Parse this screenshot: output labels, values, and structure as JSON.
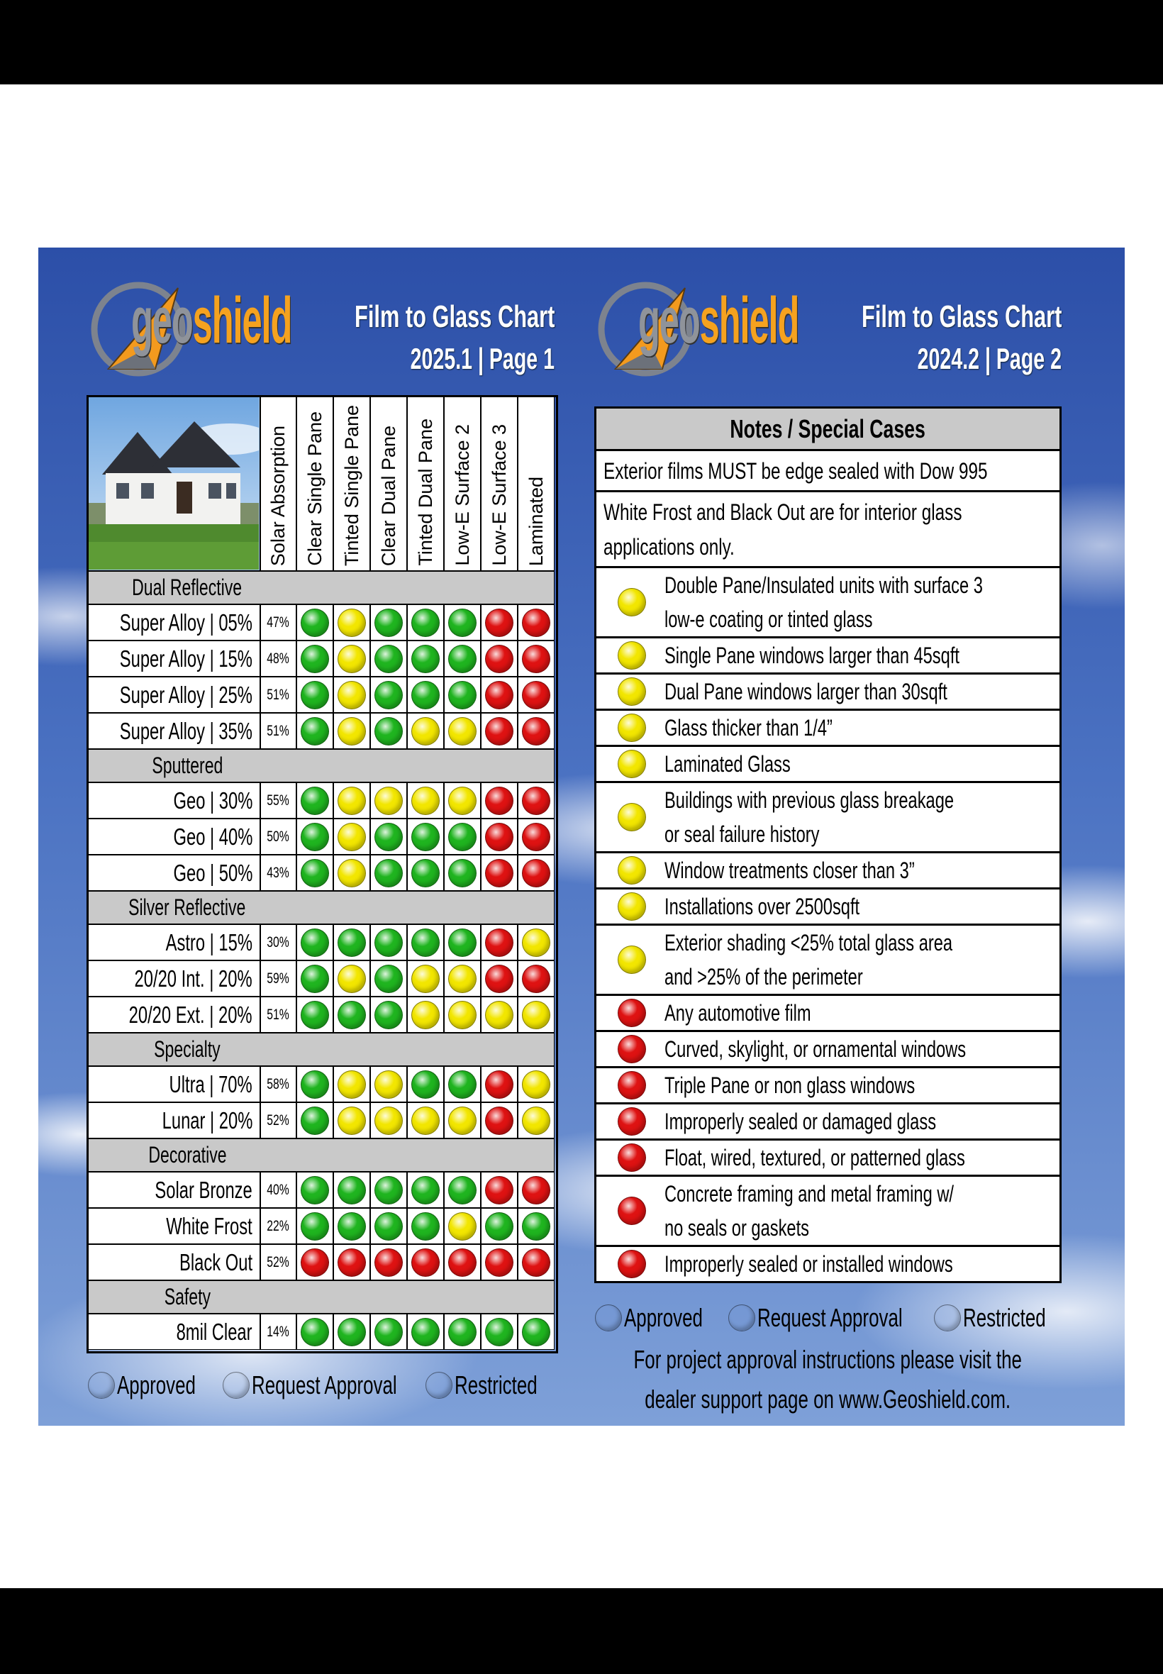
{
  "legend": [
    {
      "label": "Approved",
      "color": "#1fb41f"
    },
    {
      "label": "Request Approval",
      "color": "#f2e600"
    },
    {
      "label": "Restricted",
      "color": "#de1212"
    }
  ],
  "page1": {
    "logo": [
      "geo",
      "shield"
    ],
    "title": "Film to Glass Chart",
    "subtitle": "2025.1 | Page 1",
    "columns": [
      "Solar Absorption",
      "Clear Single Pane",
      "Tinted Single Pane",
      "Clear Dual Pane",
      "Tinted Dual Pane",
      "Low-E Surface 2",
      "Low-E Surface 3",
      "Laminated"
    ],
    "groups": [
      {
        "name": "Dual Reflective",
        "rows": [
          {
            "film": "Super Alloy | 05%",
            "solar": "47%",
            "status": [
              0,
              1,
              0,
              0,
              0,
              2,
              2
            ]
          },
          {
            "film": "Super Alloy |  15%",
            "solar": "48%",
            "status": [
              0,
              1,
              0,
              0,
              0,
              2,
              2
            ]
          },
          {
            "film": "Super Alloy | 25%",
            "solar": "51%",
            "status": [
              0,
              1,
              0,
              0,
              0,
              2,
              2
            ]
          },
          {
            "film": "Super Alloy | 35%",
            "solar": "51%",
            "status": [
              0,
              1,
              0,
              1,
              1,
              2,
              2
            ]
          }
        ]
      },
      {
        "name": "Sputtered",
        "rows": [
          {
            "film": "Geo | 30%",
            "solar": "55%",
            "status": [
              0,
              1,
              1,
              1,
              1,
              2,
              2
            ]
          },
          {
            "film": "Geo | 40%",
            "solar": "50%",
            "status": [
              0,
              1,
              0,
              0,
              0,
              2,
              2
            ]
          },
          {
            "film": "Geo | 50%",
            "solar": "43%",
            "status": [
              0,
              1,
              0,
              0,
              0,
              2,
              2
            ]
          }
        ]
      },
      {
        "name": "Silver Reflective",
        "rows": [
          {
            "film": "Astro | 15%",
            "solar": "30%",
            "status": [
              0,
              0,
              0,
              0,
              0,
              2,
              1
            ]
          },
          {
            "film": "20/20 Int. | 20%",
            "solar": "59%",
            "status": [
              0,
              1,
              0,
              1,
              1,
              2,
              2
            ]
          },
          {
            "film": "20/20 Ext. | 20%",
            "solar": "51%",
            "status": [
              0,
              0,
              0,
              1,
              1,
              1,
              1
            ]
          }
        ]
      },
      {
        "name": "Specialty",
        "rows": [
          {
            "film": "Ultra | 70%",
            "solar": "58%",
            "status": [
              0,
              1,
              1,
              0,
              0,
              2,
              1
            ]
          },
          {
            "film": "Lunar | 20%",
            "solar": "52%",
            "status": [
              0,
              1,
              1,
              1,
              1,
              2,
              1
            ]
          }
        ]
      },
      {
        "name": "Decorative",
        "rows": [
          {
            "film": "Solar Bronze",
            "solar": "40%",
            "status": [
              0,
              0,
              0,
              0,
              0,
              2,
              2
            ]
          },
          {
            "film": "White Frost",
            "solar": "22%",
            "status": [
              0,
              0,
              0,
              0,
              1,
              0,
              0
            ]
          },
          {
            "film": "Black Out",
            "solar": "52%",
            "status": [
              2,
              2,
              2,
              2,
              2,
              2,
              2
            ]
          }
        ]
      },
      {
        "name": "Safety",
        "rows": [
          {
            "film": "8mil Clear",
            "solar": "14%",
            "status": [
              0,
              0,
              0,
              0,
              0,
              0,
              0
            ]
          }
        ]
      }
    ]
  },
  "page2": {
    "logo": [
      "geo",
      "shield"
    ],
    "title": "Film to Glass Chart",
    "subtitle": "2024.2 | Page 2",
    "notes_header": "Notes / Special Cases",
    "text_notes": [
      [
        "Exterior films MUST be edge sealed with Dow 995"
      ],
      [
        "White Frost and Black Out are for interior glass",
        "applications only."
      ]
    ],
    "dot_notes": [
      {
        "status": 1,
        "lines": [
          "Double Pane/Insulated units with surface 3",
          "low-e coating or tinted glass"
        ]
      },
      {
        "status": 1,
        "lines": [
          "Single Pane windows larger than 45sqft"
        ]
      },
      {
        "status": 1,
        "lines": [
          "Dual Pane windows larger than 30sqft"
        ]
      },
      {
        "status": 1,
        "lines": [
          "Glass thicker than 1/4”"
        ]
      },
      {
        "status": 1,
        "lines": [
          "Laminated Glass"
        ]
      },
      {
        "status": 1,
        "lines": [
          "Buildings with previous glass breakage",
          "or seal failure history"
        ]
      },
      {
        "status": 1,
        "lines": [
          "Window treatments closer than 3”"
        ]
      },
      {
        "status": 1,
        "lines": [
          "Installations over 2500sqft"
        ]
      },
      {
        "status": 1,
        "lines": [
          "Exterior shading <25% total glass area",
          "and >25% of the perimeter"
        ]
      },
      {
        "status": 2,
        "lines": [
          "Any automotive film"
        ]
      },
      {
        "status": 2,
        "lines": [
          "Curved, skylight, or ornamental windows"
        ]
      },
      {
        "status": 2,
        "lines": [
          "Triple Pane or non glass windows"
        ]
      },
      {
        "status": 2,
        "lines": [
          "Improperly sealed or damaged glass"
        ]
      },
      {
        "status": 2,
        "lines": [
          "Float, wired, textured, or patterned glass"
        ]
      },
      {
        "status": 2,
        "lines": [
          "Concrete framing and metal framing w/",
          "no seals or gaskets"
        ]
      },
      {
        "status": 2,
        "lines": [
          "Improperly sealed or installed windows"
        ]
      }
    ],
    "footer": [
      "For project approval instructions please visit the",
      "dealer support page on www.Geoshield.com."
    ]
  }
}
